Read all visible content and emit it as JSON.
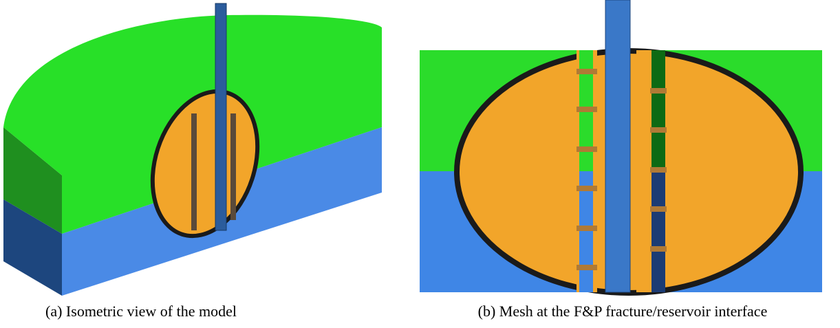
{
  "figures": [
    {
      "caption": "(a) Isometric view of the model"
    },
    {
      "caption": "(b) Mesh at the F&P fracture/reservoir interface"
    }
  ]
}
